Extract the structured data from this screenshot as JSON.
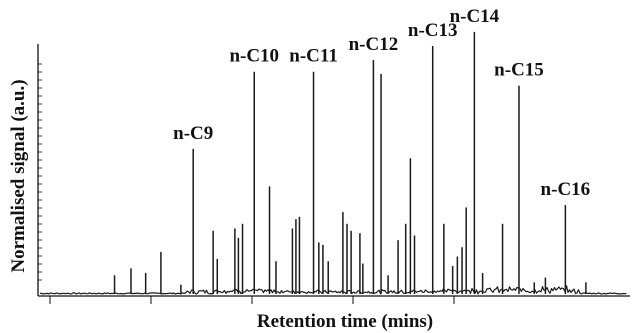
{
  "chart_data": {
    "type": "line",
    "xlabel": "Retention time (mins)",
    "ylabel": "Normalised signal (a.u.)",
    "x_tick_count": 5,
    "y_ticks_labelled": false,
    "grid": false,
    "legend": "none",
    "xlim": [
      0,
      100
    ],
    "ylim": [
      0,
      100
    ],
    "annotated_peaks": [
      {
        "label": "n-C9",
        "x": 26.1,
        "y": 62
      },
      {
        "label": "n-C10",
        "x": 36.5,
        "y": 95
      },
      {
        "label": "n-C11",
        "x": 46.6,
        "y": 95
      },
      {
        "label": "n-C12",
        "x": 56.8,
        "y": 100
      },
      {
        "label": "n-C13",
        "x": 66.9,
        "y": 106
      },
      {
        "label": "n-C14",
        "x": 74.0,
        "y": 112
      },
      {
        "label": "n-C15",
        "x": 81.6,
        "y": 89
      },
      {
        "label": "n-C16",
        "x": 89.5,
        "y": 38
      }
    ],
    "minor_peaks": [
      {
        "x": 12.7,
        "y": 8
      },
      {
        "x": 15.5,
        "y": 11
      },
      {
        "x": 18.0,
        "y": 9
      },
      {
        "x": 20.6,
        "y": 18
      },
      {
        "x": 24.0,
        "y": 4
      },
      {
        "x": 29.5,
        "y": 27
      },
      {
        "x": 30.2,
        "y": 15
      },
      {
        "x": 33.2,
        "y": 28
      },
      {
        "x": 33.8,
        "y": 24
      },
      {
        "x": 34.5,
        "y": 30
      },
      {
        "x": 39.1,
        "y": 46
      },
      {
        "x": 40.2,
        "y": 14
      },
      {
        "x": 43.0,
        "y": 28
      },
      {
        "x": 43.6,
        "y": 32
      },
      {
        "x": 44.2,
        "y": 33
      },
      {
        "x": 47.5,
        "y": 22
      },
      {
        "x": 48.2,
        "y": 21
      },
      {
        "x": 49.1,
        "y": 14
      },
      {
        "x": 51.6,
        "y": 35
      },
      {
        "x": 52.3,
        "y": 30
      },
      {
        "x": 53.0,
        "y": 27
      },
      {
        "x": 54.5,
        "y": 26
      },
      {
        "x": 55.0,
        "y": 13
      },
      {
        "x": 58.1,
        "y": 94
      },
      {
        "x": 59.3,
        "y": 8
      },
      {
        "x": 61.0,
        "y": 23
      },
      {
        "x": 62.3,
        "y": 30
      },
      {
        "x": 63.1,
        "y": 58
      },
      {
        "x": 63.8,
        "y": 25
      },
      {
        "x": 68.8,
        "y": 30
      },
      {
        "x": 70.3,
        "y": 12
      },
      {
        "x": 71.1,
        "y": 16
      },
      {
        "x": 71.9,
        "y": 20
      },
      {
        "x": 72.6,
        "y": 37
      },
      {
        "x": 75.4,
        "y": 9
      },
      {
        "x": 78.8,
        "y": 30
      },
      {
        "x": 84.2,
        "y": 5
      },
      {
        "x": 86.1,
        "y": 7
      },
      {
        "x": 93.0,
        "y": 5
      }
    ]
  }
}
